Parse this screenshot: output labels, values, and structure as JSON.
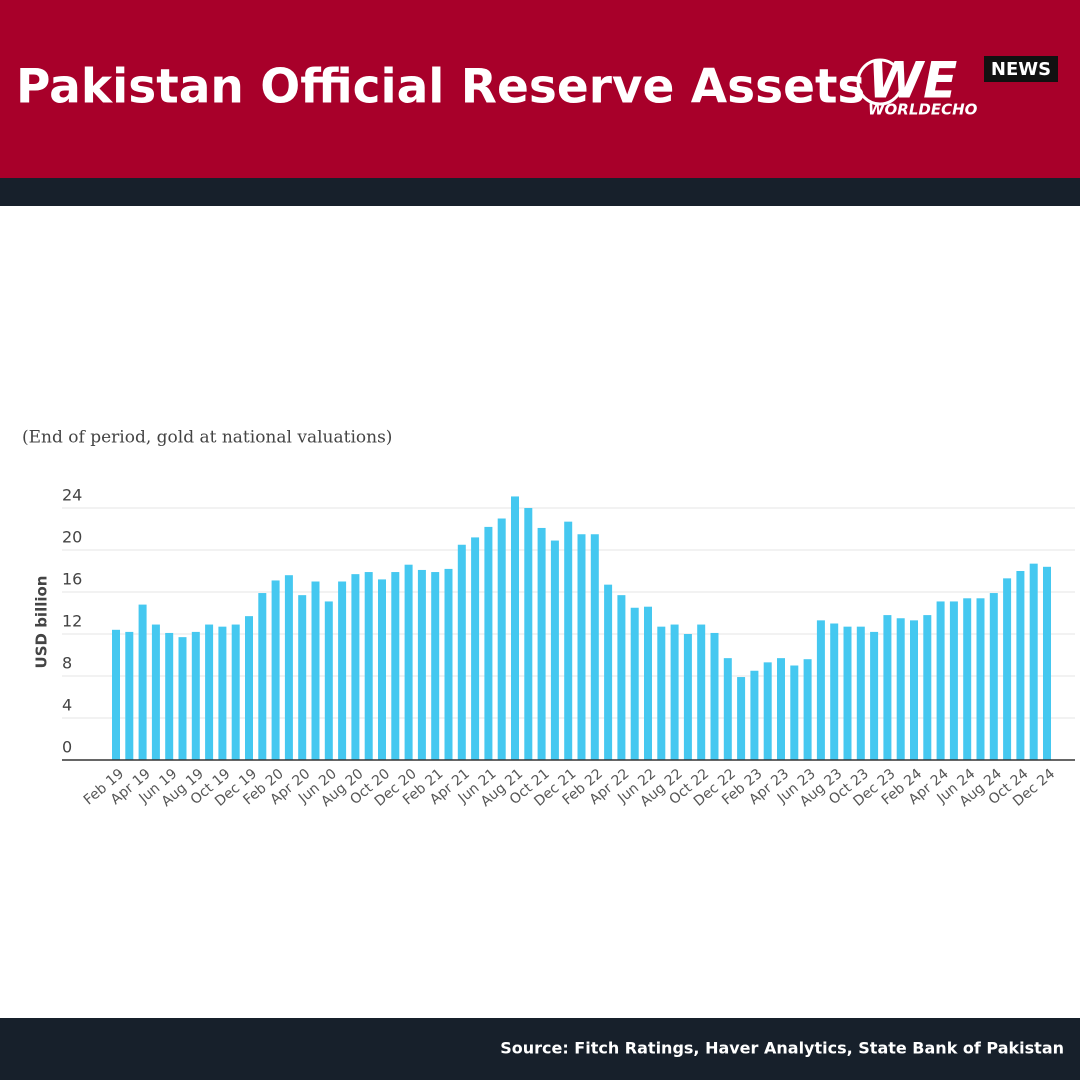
{
  "header": {
    "title": "Pakistan Official Reserve Assets",
    "logo_mark": "WE",
    "logo_badge": "NEWS",
    "logo_name": "WORLDECHO"
  },
  "footer": {
    "source": "Source: Fitch Ratings, Haver Analytics, State Bank of Pakistan"
  },
  "chart_data": {
    "type": "bar",
    "subtitle": "(End of period, gold at national valuations)",
    "y_label": "USD billion",
    "color": "#45c8f0",
    "grid": true,
    "ylim": [
      0,
      26
    ],
    "yticks": [
      0,
      4,
      8,
      12,
      16,
      20,
      24
    ],
    "categories": [
      "Feb 19",
      null,
      "Apr 19",
      null,
      "Jun 19",
      null,
      "Aug 19",
      null,
      "Oct 19",
      null,
      "Dec 19",
      null,
      "Feb 20",
      null,
      "Apr 20",
      null,
      "Jun 20",
      null,
      "Aug 20",
      null,
      "Oct 20",
      null,
      "Dec 20",
      null,
      "Feb 21",
      null,
      "Apr 21",
      null,
      "Jun 21",
      null,
      "Aug 21",
      null,
      "Oct 21",
      null,
      "Dec 21",
      null,
      "Feb 22",
      null,
      "Apr 22",
      null,
      "Jun 22",
      null,
      "Aug 22",
      null,
      "Oct 22",
      null,
      "Dec 22",
      null,
      "Feb 23",
      null,
      "Apr 23",
      null,
      "Jun 23",
      null,
      "Aug 23",
      null,
      "Oct 23",
      null,
      "Dec 23",
      null,
      "Feb 24",
      null,
      "Apr 24",
      null,
      "Jun 24",
      null,
      "Aug 24",
      null,
      "Oct 24",
      null,
      "Dec 24"
    ],
    "values": [
      12.4,
      12.2,
      14.8,
      12.9,
      12.1,
      11.7,
      12.2,
      12.9,
      12.7,
      12.9,
      13.7,
      15.9,
      17.1,
      17.6,
      15.7,
      17.0,
      15.1,
      17.0,
      17.7,
      17.9,
      17.2,
      17.9,
      18.6,
      18.1,
      17.9,
      18.2,
      20.5,
      21.2,
      22.2,
      23.0,
      25.1,
      24.0,
      22.1,
      20.9,
      22.7,
      21.5,
      21.5,
      16.7,
      15.7,
      14.5,
      14.6,
      12.7,
      12.9,
      12.0,
      12.9,
      12.1,
      9.7,
      7.9,
      8.5,
      9.3,
      9.7,
      9.0,
      9.6,
      13.3,
      13.0,
      12.7,
      12.7,
      12.2,
      13.8,
      13.5,
      13.3,
      13.8,
      15.1,
      15.1,
      15.4,
      15.4,
      15.9,
      17.3,
      18.0,
      18.7,
      18.4
    ]
  }
}
